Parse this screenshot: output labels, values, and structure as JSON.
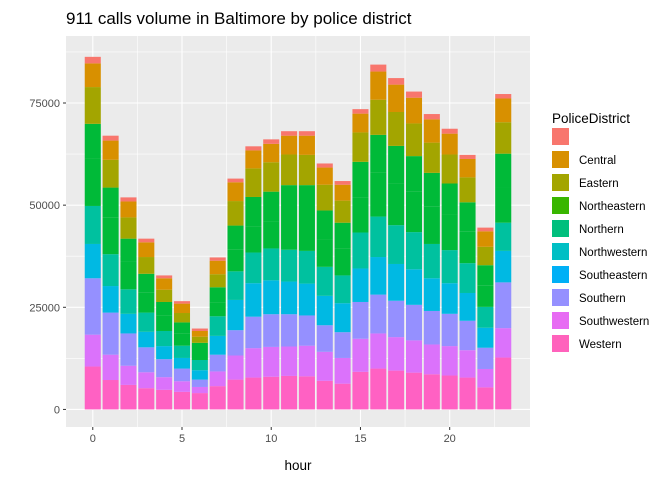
{
  "chart_data": {
    "type": "bar",
    "stacked": true,
    "title": "911 calls volume in Baltimore by police district",
    "xlabel": "hour",
    "ylabel": "",
    "x": [
      0,
      1,
      2,
      3,
      4,
      5,
      6,
      7,
      8,
      9,
      10,
      11,
      12,
      13,
      14,
      15,
      16,
      17,
      18,
      19,
      20,
      21,
      22,
      23
    ],
    "x_ticks": [
      0,
      5,
      10,
      15,
      20
    ],
    "x_tick_labels": [
      "0",
      "5",
      "10",
      "15",
      "20"
    ],
    "y_ticks": [
      0,
      25000,
      50000,
      75000
    ],
    "y_tick_labels": [
      "0",
      "25000",
      "50000",
      "75000"
    ],
    "xlim": [
      -1.5,
      24.5
    ],
    "ylim": [
      -4300,
      91400
    ],
    "grid": true,
    "legend_position": "right",
    "legend_title": "PoliceDistrict",
    "series": [
      {
        "name": "Western",
        "color": "#FF61C3",
        "values": [
          10500,
          7200,
          6000,
          5200,
          4800,
          4300,
          4000,
          5700,
          7300,
          7800,
          8000,
          8200,
          8100,
          7000,
          6300,
          9200,
          10000,
          9500,
          9000,
          8600,
          8300,
          7800,
          5400,
          12700
        ]
      },
      {
        "name": "Southwestern",
        "color": "#DB72FB",
        "values": [
          7800,
          6200,
          4700,
          3900,
          3100,
          2600,
          1500,
          3600,
          5900,
          7200,
          7300,
          7200,
          7500,
          7100,
          6300,
          8100,
          8600,
          8200,
          7900,
          7300,
          7200,
          6700,
          4500,
          7200
        ]
      },
      {
        "name": "Southern",
        "color": "#9590FF",
        "values": [
          13800,
          10300,
          7900,
          6100,
          4400,
          3100,
          1800,
          4100,
          6200,
          7700,
          8000,
          7900,
          7400,
          6500,
          6300,
          9000,
          9500,
          8900,
          8700,
          8200,
          7900,
          7200,
          5200,
          11200
        ]
      },
      {
        "name": "Southeastern",
        "color": "#00B9E3",
        "values": [
          8400,
          6500,
          4800,
          3800,
          3200,
          2600,
          2300,
          4600,
          7400,
          8200,
          8300,
          8000,
          7800,
          7200,
          7100,
          8200,
          9200,
          9000,
          8700,
          8000,
          7500,
          6800,
          4900,
          7700
        ]
      },
      {
        "name": "Northwestern",
        "color": "#00C19F",
        "values": [
          9300,
          7800,
          6000,
          4700,
          3700,
          3000,
          2500,
          4800,
          7000,
          7500,
          7800,
          7800,
          8000,
          7100,
          6800,
          8800,
          9900,
          9500,
          9100,
          8400,
          8100,
          7300,
          5100,
          6900
        ]
      },
      {
        "name": "Northern",
        "color": "#00BA38",
        "values": [
          11600,
          8900,
          6700,
          5000,
          3700,
          2900,
          2200,
          3400,
          5300,
          6400,
          6700,
          8000,
          8300,
          6800,
          6500,
          8600,
          10700,
          10300,
          9900,
          9100,
          8600,
          7800,
          5300,
          8500
        ]
      },
      {
        "name": "Northeastern",
        "color": "#00BA38",
        "values": [
          8500,
          7400,
          5700,
          4500,
          3400,
          2800,
          2000,
          3700,
          5900,
          7200,
          7200,
          7800,
          7800,
          7000,
          6400,
          8700,
          9300,
          9100,
          8700,
          8300,
          7700,
          7100,
          4900,
          8400
        ]
      },
      {
        "name": "Eastern",
        "color": "#A3A500",
        "values": [
          9000,
          6800,
          5200,
          4100,
          3000,
          2300,
          1500,
          3200,
          6000,
          7000,
          7200,
          7500,
          7400,
          6300,
          5400,
          7200,
          8600,
          8300,
          8000,
          7400,
          7100,
          6100,
          4500,
          7700
        ]
      },
      {
        "name": "Central",
        "color": "#D89000",
        "values": [
          5800,
          4700,
          3900,
          3600,
          2800,
          2300,
          1400,
          3300,
          4600,
          4400,
          4500,
          4600,
          4700,
          4200,
          3900,
          4600,
          6900,
          6700,
          6300,
          5700,
          5100,
          4500,
          3800,
          5800
        ]
      },
      {
        "name": "",
        "color": "#F8766D",
        "values": [
          1600,
          1200,
          1000,
          900,
          700,
          600,
          600,
          800,
          900,
          1000,
          1100,
          1100,
          1100,
          1000,
          900,
          1100,
          1700,
          1600,
          1500,
          1300,
          1200,
          1000,
          900,
          1100
        ]
      }
    ],
    "legend_entries": [
      {
        "name": "",
        "color": "#F8766D"
      },
      {
        "name": "Central",
        "color": "#D89000"
      },
      {
        "name": "Eastern",
        "color": "#A3A500"
      },
      {
        "name": "Northeastern",
        "color": "#39B600"
      },
      {
        "name": "Northern",
        "color": "#00BF7D"
      },
      {
        "name": "Northwestern",
        "color": "#00BFC4"
      },
      {
        "name": "Southeastern",
        "color": "#00B0F6"
      },
      {
        "name": "Southern",
        "color": "#9590FF"
      },
      {
        "name": "Southwestern",
        "color": "#E76BF3"
      },
      {
        "name": "Western",
        "color": "#FF62BC"
      }
    ],
    "panel_background": "#EBEBEB",
    "grid_color": "#FFFFFF"
  }
}
